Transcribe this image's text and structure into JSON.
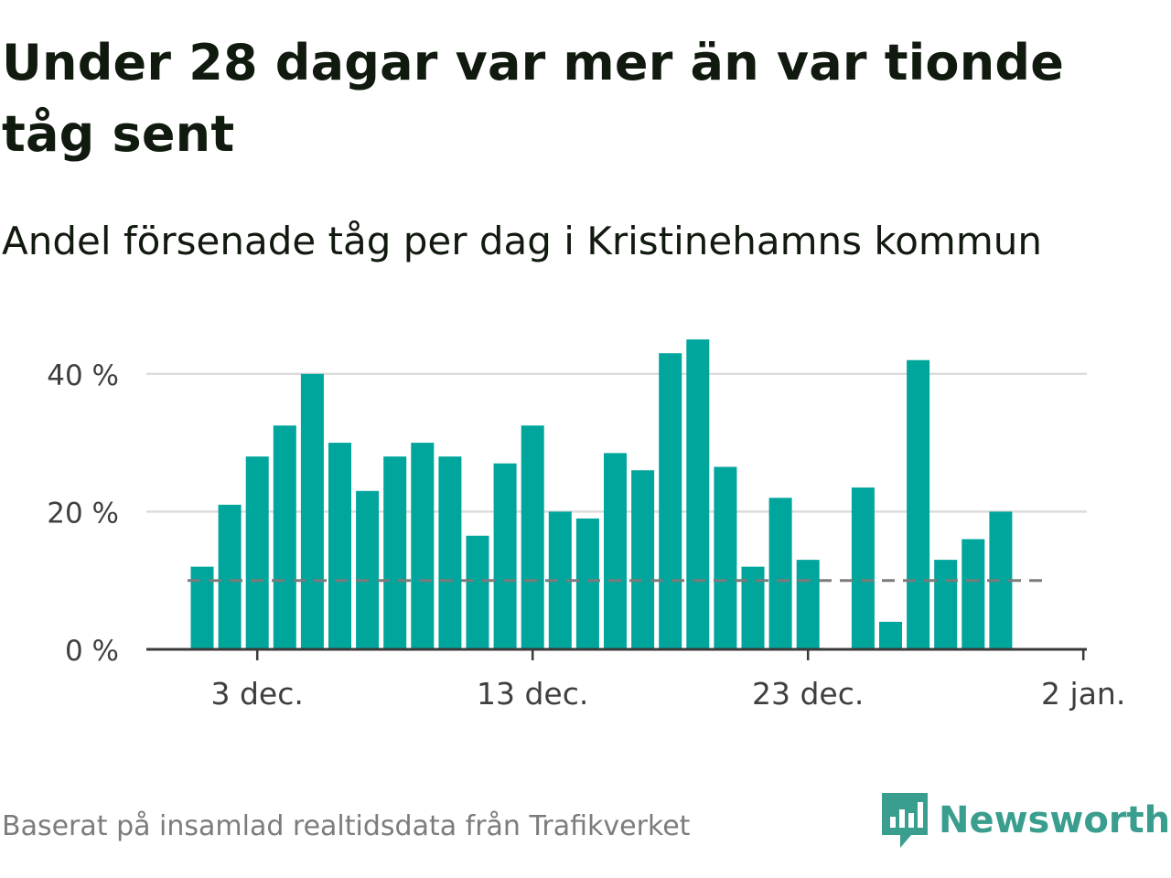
{
  "title": "Under 28 dagar var mer än var tionde tåg sent",
  "subtitle": "Andel försenade tåg per dag i Kristinehamns kommun",
  "footer": "Baserat på insamlad realtidsdata från Trafikverket",
  "brand": {
    "name": "Newsworthy",
    "icon": "newsworthy-logo-icon",
    "color": "#3a9e8e"
  },
  "chart_data": {
    "type": "bar",
    "x": [
      "2023-12-01",
      "2023-12-02",
      "2023-12-03",
      "2023-12-04",
      "2023-12-05",
      "2023-12-06",
      "2023-12-07",
      "2023-12-08",
      "2023-12-09",
      "2023-12-10",
      "2023-12-11",
      "2023-12-12",
      "2023-12-13",
      "2023-12-14",
      "2023-12-15",
      "2023-12-16",
      "2023-12-17",
      "2023-12-18",
      "2023-12-19",
      "2023-12-20",
      "2023-12-21",
      "2023-12-22",
      "2023-12-23",
      "2023-12-24",
      "2023-12-25",
      "2023-12-26",
      "2023-12-27",
      "2023-12-28",
      "2023-12-29",
      "2023-12-30",
      "2023-12-31"
    ],
    "values": [
      12,
      21,
      28,
      32.5,
      40,
      30,
      23,
      28,
      30,
      28,
      16.5,
      27,
      32.5,
      20,
      19,
      28.5,
      26,
      43,
      45,
      26.5,
      12,
      22,
      13,
      null,
      23.5,
      4,
      42,
      13,
      16,
      20,
      null
    ],
    "reference_line": {
      "value": 10,
      "style": "dashed",
      "color": "#7b7b7b"
    },
    "ylim": [
      0,
      46
    ],
    "yticks": [
      0,
      20,
      40
    ],
    "ytick_labels": [
      "0 %",
      "20 %",
      "40 %"
    ],
    "xtick_dates": [
      "2023-12-03",
      "2023-12-13",
      "2023-12-23",
      "2024-01-02"
    ],
    "xtick_labels": [
      "3 dec.",
      "13 dec.",
      "23 dec.",
      "2 jan."
    ],
    "bar_color": "#00a59c",
    "grid": true,
    "xlabel": "",
    "ylabel": ""
  }
}
